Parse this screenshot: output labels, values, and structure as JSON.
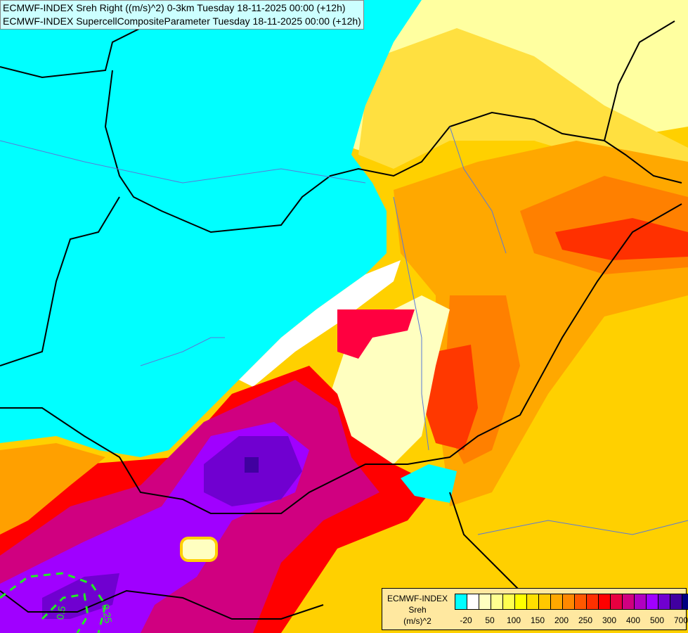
{
  "header": {
    "line1": "ECMWF-INDEX Sreh Right ((m/s)^2) 0-3km Tuesday 18-11-2025 00:00 (+12h)",
    "line2": "ECMWF-INDEX SupercellCompositeParameter Tuesday 18-11-2025 00:00 (+12h)"
  },
  "legend": {
    "title1": "ECMWF-INDEX",
    "title2": "Sreh",
    "title3": "(m/s)^2",
    "colors": [
      "#00ffff",
      "#ffffff",
      "#ffffc0",
      "#ffff90",
      "#ffff50",
      "#ffff00",
      "#ffe000",
      "#ffc800",
      "#ffa800",
      "#ff8800",
      "#ff5800",
      "#ff3000",
      "#ff0000",
      "#e80040",
      "#d00080",
      "#b000c0",
      "#a000ff",
      "#7000d0",
      "#4000a0",
      "#000080"
    ],
    "ticks": [
      "-20",
      "50",
      "100",
      "150",
      "200",
      "250",
      "300",
      "400",
      "500",
      "700"
    ]
  },
  "contours": {
    "label1": "0.5",
    "label2": "0.25",
    "color": "#22ee22"
  }
}
